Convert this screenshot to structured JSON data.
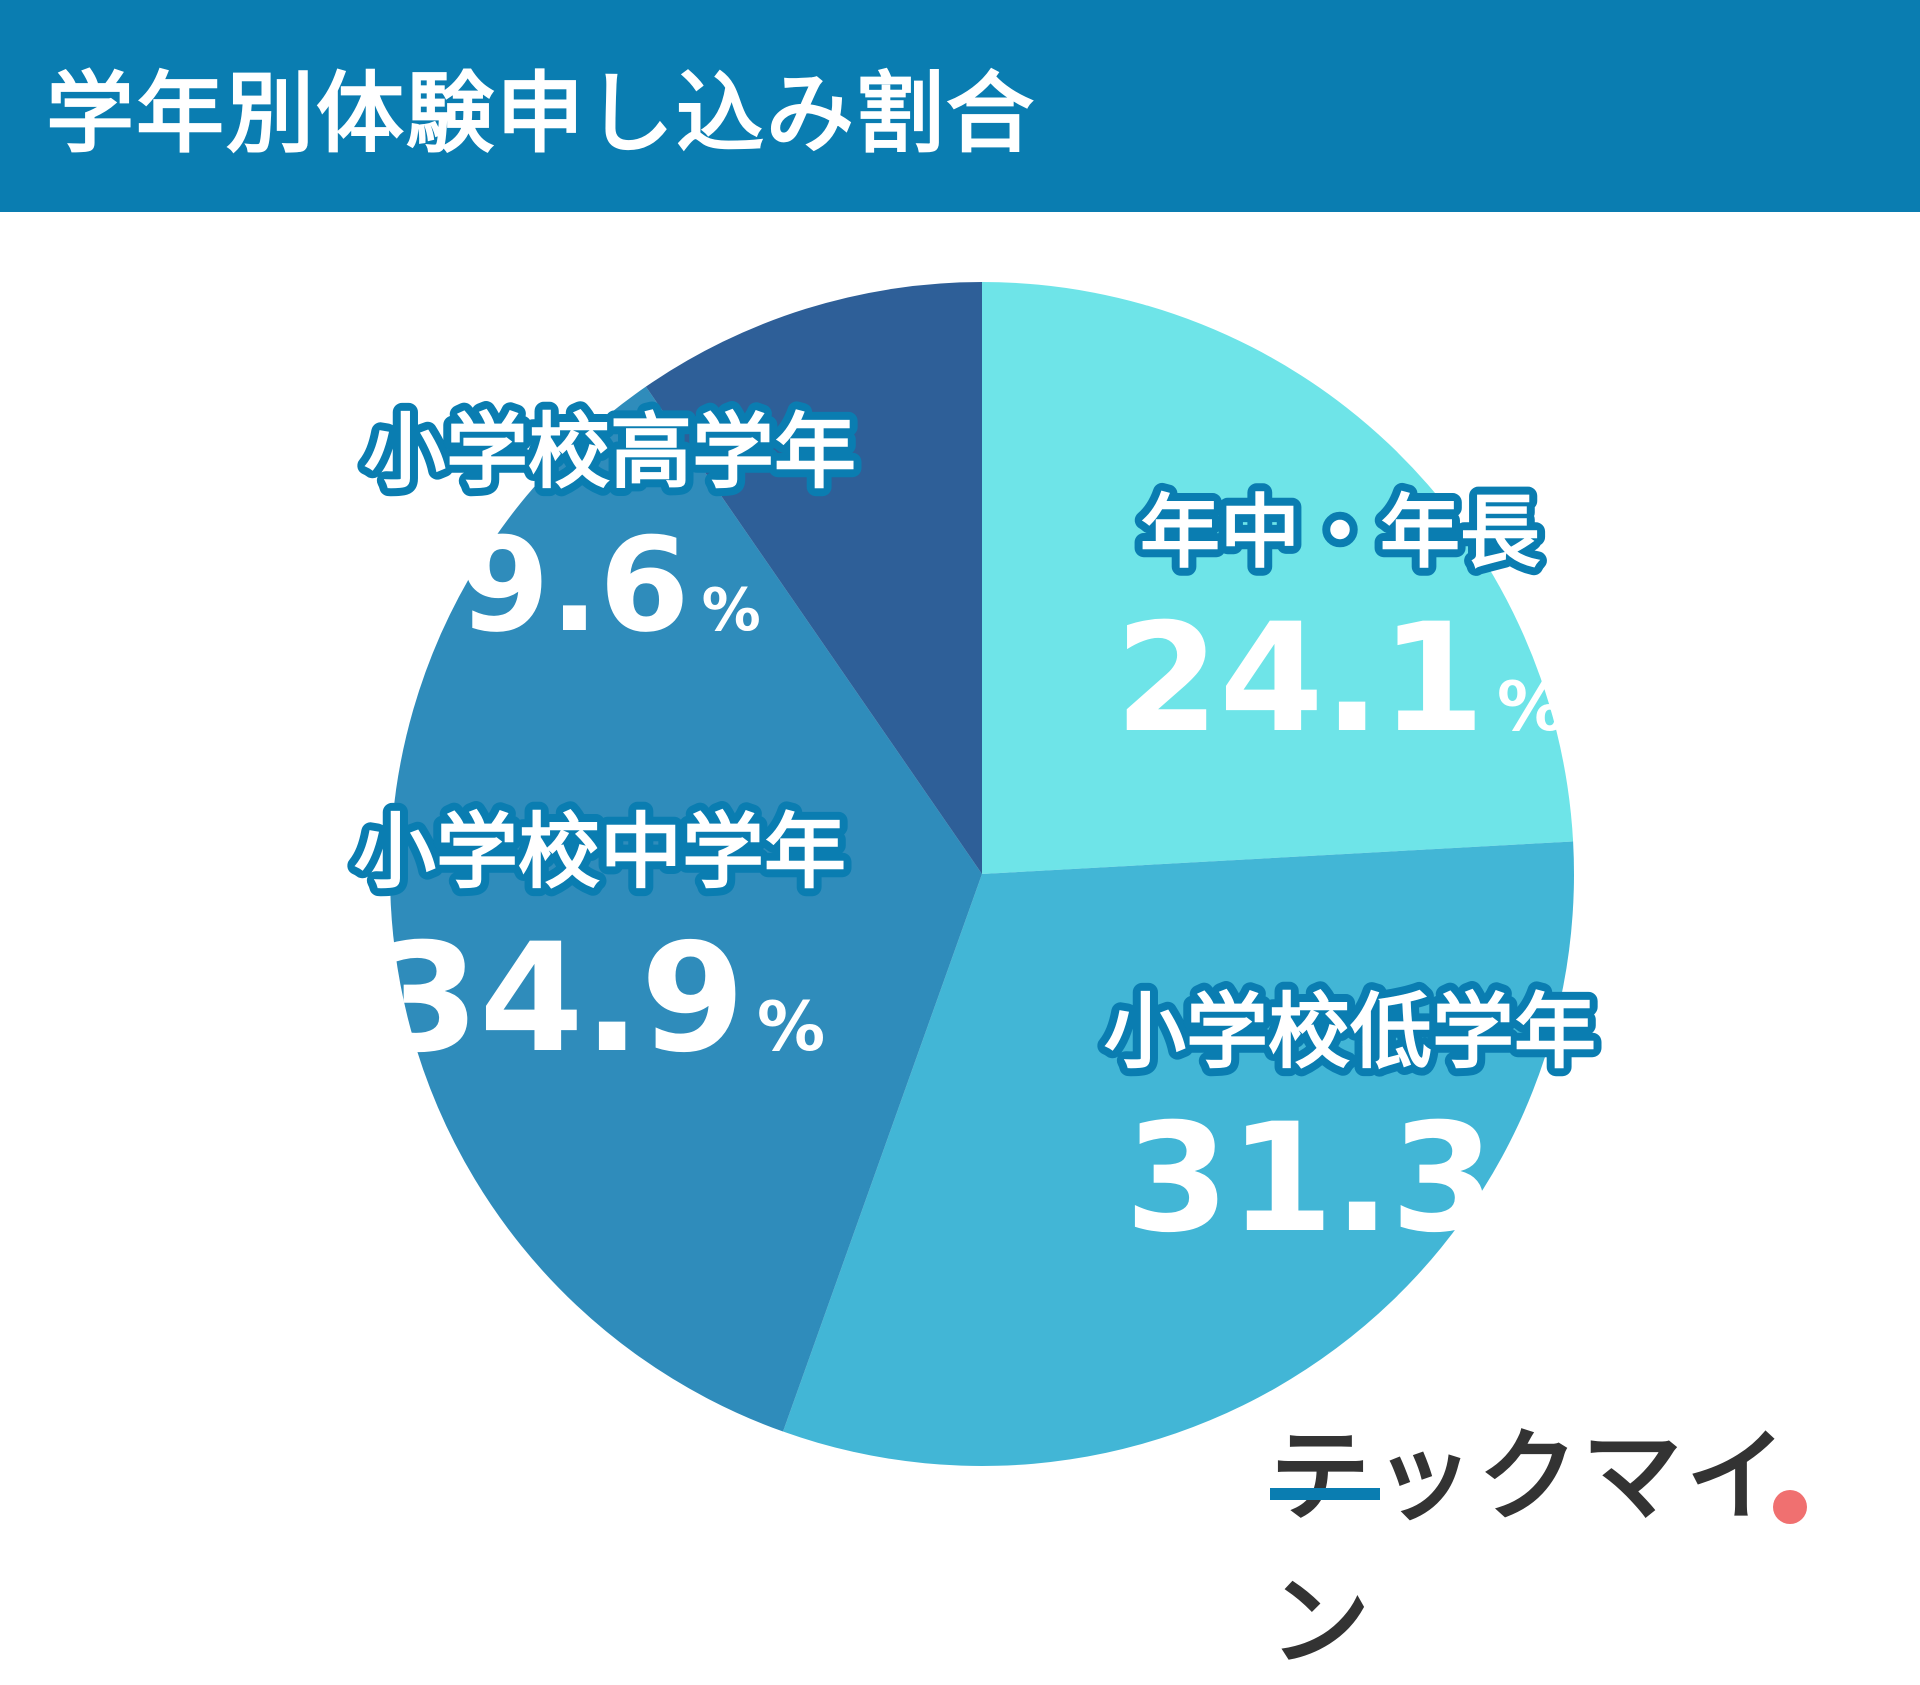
{
  "header": {
    "title": "学年別体験申し込み割合"
  },
  "chart_data": {
    "type": "pie",
    "title": "学年別体験申し込み割合",
    "start": "12 o'clock, clockwise",
    "slices": [
      {
        "label": "年中・年長",
        "value": 24.1,
        "value_text": "24.1",
        "color": "#6ee4e8"
      },
      {
        "label": "小学校低学年",
        "value": 31.3,
        "value_text": "31.3",
        "color": "#42b6d6"
      },
      {
        "label": "小学校中学年",
        "value": 34.9,
        "value_text": "34.9",
        "color": "#2f8cbb"
      },
      {
        "label": "小学校高学年",
        "value": 9.6,
        "value_text": "9.6",
        "color": "#2e5f98"
      }
    ],
    "unit": "%",
    "label_outline_color": "#0a7db1"
  },
  "logo": {
    "text": "テックマイン"
  }
}
